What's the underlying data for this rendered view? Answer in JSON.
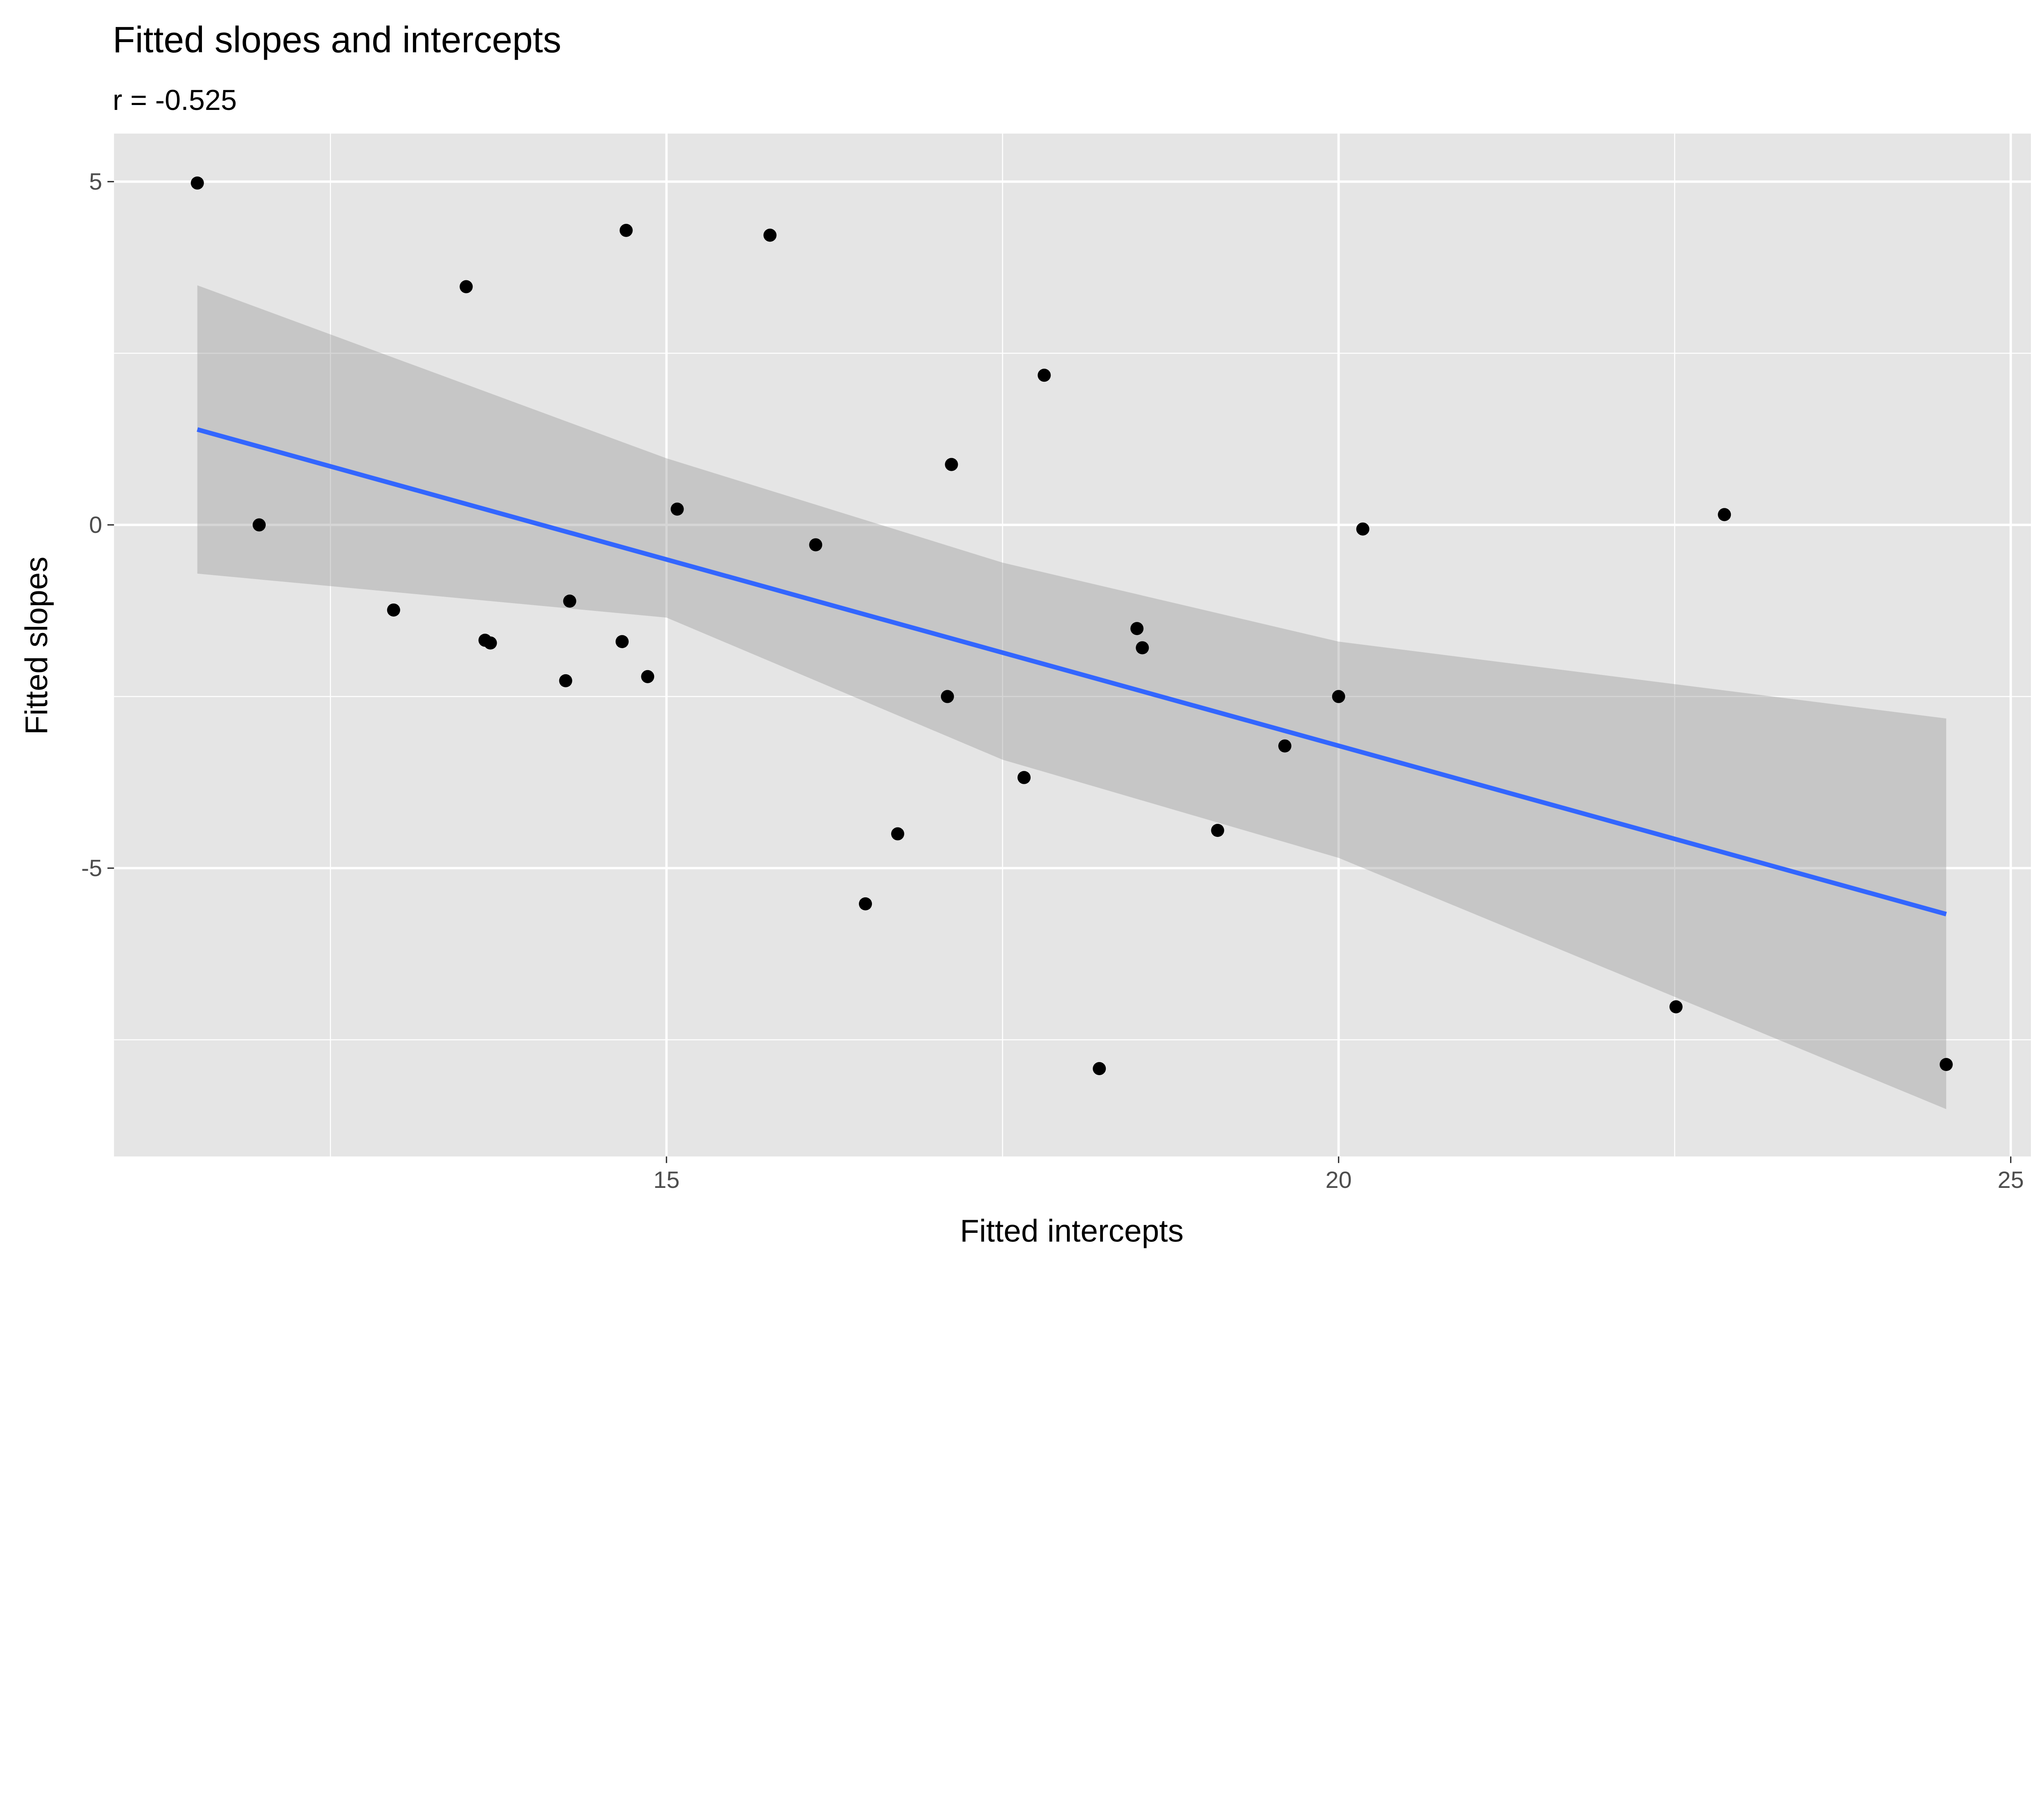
{
  "chart_data": {
    "type": "scatter",
    "title": "Fitted slopes and intercepts",
    "subtitle": "r = -0.525",
    "xlabel": "Fitted intercepts",
    "ylabel": "Fitted slopes",
    "xlim": [
      10.89,
      25.15
    ],
    "ylim": [
      -9.2,
      5.7
    ],
    "x_ticks": [
      15,
      20,
      25
    ],
    "x_tick_labels": [
      "15",
      "20",
      "25"
    ],
    "x_minor": [
      12.5,
      17.5,
      22.5
    ],
    "y_ticks": [
      5,
      0,
      -5
    ],
    "y_tick_labels": [
      "5",
      "0",
      "-5"
    ],
    "y_minor": [
      2.5,
      -2.5,
      -7.5
    ],
    "grid": true,
    "points": [
      [
        11.51,
        4.98
      ],
      [
        11.97,
        0.0
      ],
      [
        13.51,
        3.47
      ],
      [
        14.7,
        4.29
      ],
      [
        15.77,
        4.22
      ],
      [
        17.81,
        2.18
      ],
      [
        17.12,
        0.88
      ],
      [
        15.08,
        0.23
      ],
      [
        16.11,
        -0.29
      ],
      [
        20.18,
        -0.06
      ],
      [
        22.87,
        0.15
      ],
      [
        12.97,
        -1.24
      ],
      [
        14.28,
        -1.11
      ],
      [
        13.65,
        -1.68
      ],
      [
        13.69,
        -1.72
      ],
      [
        14.67,
        -1.7
      ],
      [
        14.25,
        -2.27
      ],
      [
        14.86,
        -2.21
      ],
      [
        17.09,
        -2.5
      ],
      [
        18.5,
        -1.51
      ],
      [
        18.54,
        -1.79
      ],
      [
        20.0,
        -2.5
      ],
      [
        19.6,
        -3.22
      ],
      [
        17.66,
        -3.68
      ],
      [
        16.72,
        -4.5
      ],
      [
        19.1,
        -4.45
      ],
      [
        16.48,
        -5.52
      ],
      [
        18.22,
        -7.92
      ],
      [
        22.51,
        -7.02
      ],
      [
        24.52,
        -7.86
      ]
    ],
    "fit_line": {
      "x": [
        11.51,
        24.52
      ],
      "y": [
        1.39,
        -5.67
      ],
      "color": "#3366FF"
    },
    "confidence_band": {
      "x": [
        11.51,
        15.0,
        17.5,
        20.0,
        24.52
      ],
      "upper": [
        3.49,
        0.97,
        -0.55,
        -1.7,
        -2.82
      ],
      "lower": [
        -0.71,
        -1.35,
        -3.42,
        -4.85,
        -8.51
      ]
    },
    "colors": {
      "panel": "#E5E5E5",
      "grid": "#FFFFFF",
      "point": "#000000",
      "band": "#999999",
      "line": "#3366FF"
    }
  }
}
